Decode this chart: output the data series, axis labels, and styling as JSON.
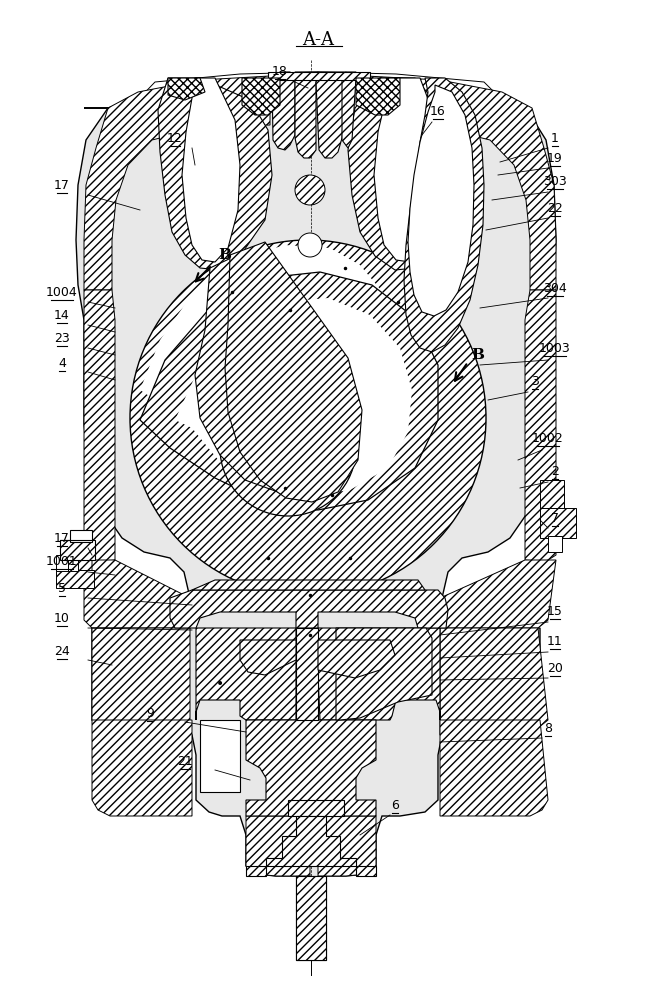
{
  "title": "A-A",
  "bg_color": "#ffffff",
  "line_color": "#000000",
  "labels_left": [
    [
      "1004",
      68,
      302
    ],
    [
      "14",
      68,
      325
    ],
    [
      "23",
      68,
      348
    ],
    [
      "4",
      68,
      373
    ],
    [
      "17",
      68,
      548
    ],
    [
      "1001",
      68,
      572
    ],
    [
      "5",
      68,
      598
    ],
    [
      "10",
      68,
      628
    ],
    [
      "24",
      68,
      660
    ],
    [
      "9",
      155,
      720
    ],
    [
      "21",
      185,
      768
    ]
  ],
  "labels_right": [
    [
      "1",
      550,
      148
    ],
    [
      "19",
      550,
      168
    ],
    [
      "303",
      550,
      192
    ],
    [
      "22",
      550,
      218
    ],
    [
      "304",
      550,
      298
    ],
    [
      "1003",
      550,
      358
    ],
    [
      "3",
      530,
      390
    ],
    [
      "1002",
      540,
      448
    ],
    [
      "2",
      550,
      480
    ],
    [
      "7",
      550,
      528
    ],
    [
      "15",
      550,
      620
    ],
    [
      "11",
      550,
      650
    ],
    [
      "20",
      550,
      678
    ],
    [
      "8",
      548,
      738
    ]
  ],
  "labels_top": [
    [
      "12",
      175,
      148
    ],
    [
      "17",
      100,
      195
    ],
    [
      "18",
      278,
      82
    ],
    [
      "16",
      430,
      120
    ]
  ],
  "labels_bottom": [
    [
      "6",
      390,
      810
    ],
    [
      "21",
      195,
      768
    ]
  ]
}
